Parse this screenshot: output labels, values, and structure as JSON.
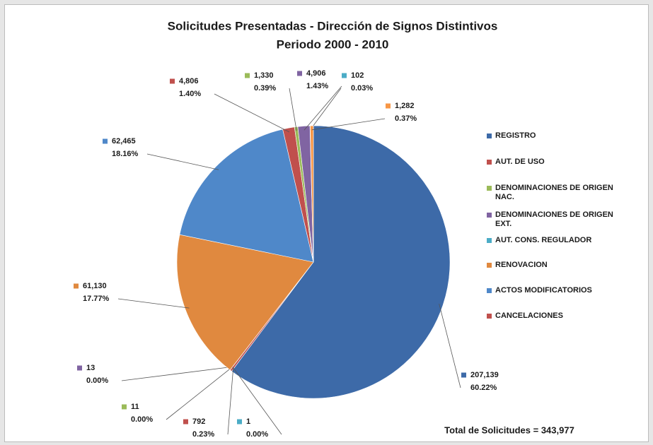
{
  "chart_data": {
    "type": "pie",
    "title": "Solicitudes Presentadas - Dirección de Signos Distintivos",
    "subtitle": "Periodo 2000 - 2010",
    "categories": [
      "REGISTRO",
      "AUT. DE USO",
      "DENOMINACIONES DE ORIGEN NAC.",
      "DENOMINACIONES DE ORIGEN EXT.",
      "AUT. CONS. REGULADOR",
      "RENOVACION",
      "ACTOS MODIFICATORIOS",
      "CANCELACIONES",
      null,
      null,
      null,
      null
    ],
    "values": [
      207139,
      792,
      11,
      13,
      1,
      61130,
      62465,
      4806,
      1330,
      4906,
      102,
      1282
    ],
    "value_labels": [
      "207,139",
      "792",
      "11",
      "13",
      "1",
      "61,130",
      "62,465",
      "4,806",
      "1,330",
      "4,906",
      "102",
      "1,282"
    ],
    "percent_labels": [
      "60.22%",
      "0.23%",
      "0.00%",
      "0.00%",
      "0.00%",
      "17.77%",
      "18.16%",
      "1.40%",
      "0.39%",
      "1.43%",
      "0.03%",
      "0.37%"
    ],
    "colors": [
      "#3d6aa8",
      "#c0504d",
      "#9bbb59",
      "#8064a2",
      "#4bacc6",
      "#e0893f",
      "#4f88c9",
      "#c0504d",
      "#9bbb59",
      "#8064a2",
      "#4bacc6",
      "#f79646"
    ],
    "legend": "right",
    "annotation": "Total de Solicitudes = 343,977"
  }
}
